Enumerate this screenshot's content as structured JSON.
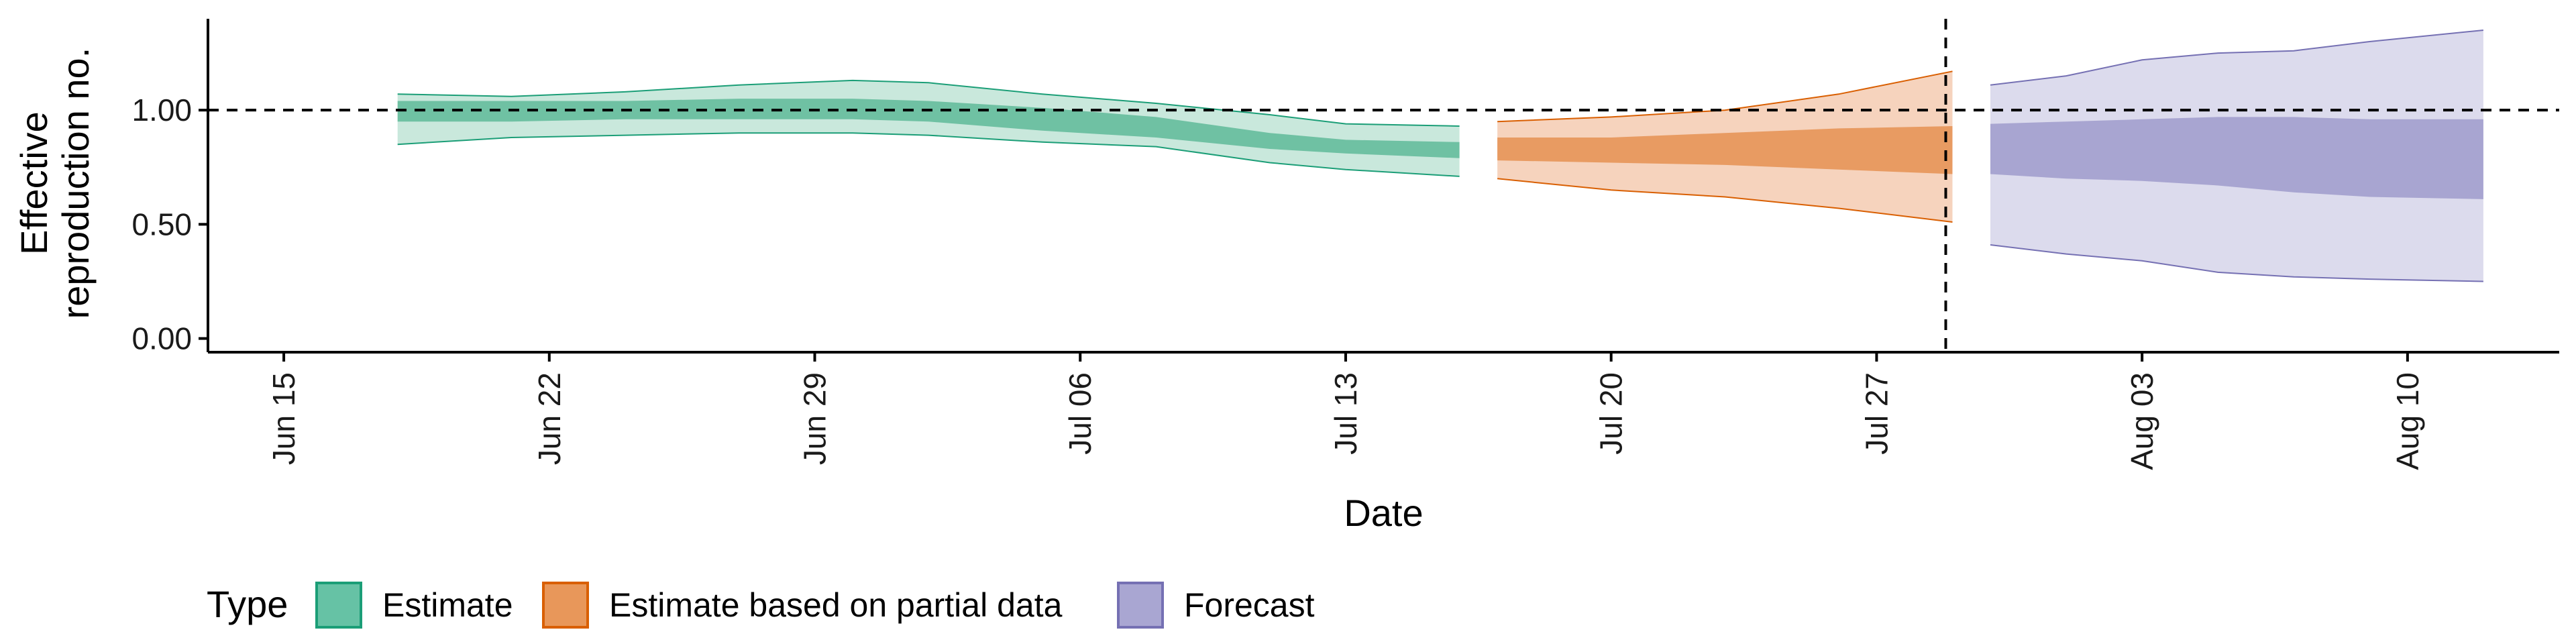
{
  "chart_data": {
    "type": "area",
    "xlabel": "Date",
    "ylabel_lines": [
      "Effective",
      "reproduction no."
    ],
    "y_ticks": [
      {
        "value": 0,
        "label": "0.00"
      },
      {
        "value": 0.5,
        "label": "0.50"
      },
      {
        "value": 1,
        "label": "1.00"
      }
    ],
    "ylim": [
      -0.06,
      1.4
    ],
    "x_start": "2020-06-13",
    "x_ticks": [
      {
        "date": "2020-06-15",
        "label": "Jun 15"
      },
      {
        "date": "2020-06-22",
        "label": "Jun 22"
      },
      {
        "date": "2020-06-29",
        "label": "Jun 29"
      },
      {
        "date": "2020-07-06",
        "label": "Jul 06"
      },
      {
        "date": "2020-07-13",
        "label": "Jul 13"
      },
      {
        "date": "2020-07-20",
        "label": "Jul 20"
      },
      {
        "date": "2020-07-27",
        "label": "Jul 27"
      },
      {
        "date": "2020-08-03",
        "label": "Aug 03"
      },
      {
        "date": "2020-08-10",
        "label": "Aug 10"
      }
    ],
    "xlim": [
      "2020-06-13",
      "2020-08-14"
    ],
    "reference_line_y": 1.0,
    "forecast_date": "2020-07-29",
    "legend": {
      "title": "Type",
      "position": "bottom"
    },
    "series": [
      {
        "name": "Estimate",
        "fill": "#66c2a5",
        "inner_fill": "#6fc1a3",
        "outer_fill": "#c9e8dc",
        "stroke": "#1b9e77",
        "dates": [
          "2020-06-18",
          "2020-06-21",
          "2020-06-24",
          "2020-06-27",
          "2020-06-30",
          "2020-07-02",
          "2020-07-05",
          "2020-07-08",
          "2020-07-11",
          "2020-07-13",
          "2020-07-16"
        ],
        "lower90": [
          0.85,
          0.88,
          0.89,
          0.9,
          0.9,
          0.89,
          0.86,
          0.84,
          0.77,
          0.74,
          0.71
        ],
        "lower50": [
          0.95,
          0.95,
          0.96,
          0.96,
          0.96,
          0.95,
          0.91,
          0.88,
          0.83,
          0.81,
          0.79
        ],
        "upper50": [
          1.04,
          1.04,
          1.04,
          1.05,
          1.05,
          1.04,
          1.01,
          0.97,
          0.9,
          0.87,
          0.86
        ],
        "upper90": [
          1.07,
          1.06,
          1.08,
          1.11,
          1.13,
          1.12,
          1.07,
          1.03,
          0.98,
          0.94,
          0.93
        ]
      },
      {
        "name": "Estimate based on partial data",
        "fill": "#e8975a",
        "inner_fill": "#e89b62",
        "outer_fill": "#f6d3bd",
        "stroke": "#d95f02",
        "dates": [
          "2020-07-17",
          "2020-07-20",
          "2020-07-23",
          "2020-07-26",
          "2020-07-29"
        ],
        "lower90": [
          0.7,
          0.65,
          0.62,
          0.57,
          0.51
        ],
        "lower50": [
          0.78,
          0.77,
          0.76,
          0.74,
          0.72
        ],
        "upper50": [
          0.88,
          0.88,
          0.9,
          0.92,
          0.93
        ],
        "upper90": [
          0.95,
          0.97,
          1.0,
          1.07,
          1.17
        ]
      },
      {
        "name": "Forecast",
        "fill": "#a9a6d2",
        "inner_fill": "#a8a5d1",
        "outer_fill": "#dcdbed",
        "stroke": "#7570b3",
        "dates": [
          "2020-07-30",
          "2020-08-01",
          "2020-08-03",
          "2020-08-05",
          "2020-08-07",
          "2020-08-09",
          "2020-08-12"
        ],
        "lower90": [
          0.41,
          0.37,
          0.34,
          0.29,
          0.27,
          0.26,
          0.25
        ],
        "lower50": [
          0.72,
          0.7,
          0.69,
          0.67,
          0.64,
          0.62,
          0.61
        ],
        "upper50": [
          0.94,
          0.95,
          0.96,
          0.97,
          0.97,
          0.96,
          0.96
        ],
        "upper90": [
          1.11,
          1.15,
          1.22,
          1.25,
          1.26,
          1.3,
          1.35
        ]
      }
    ]
  }
}
